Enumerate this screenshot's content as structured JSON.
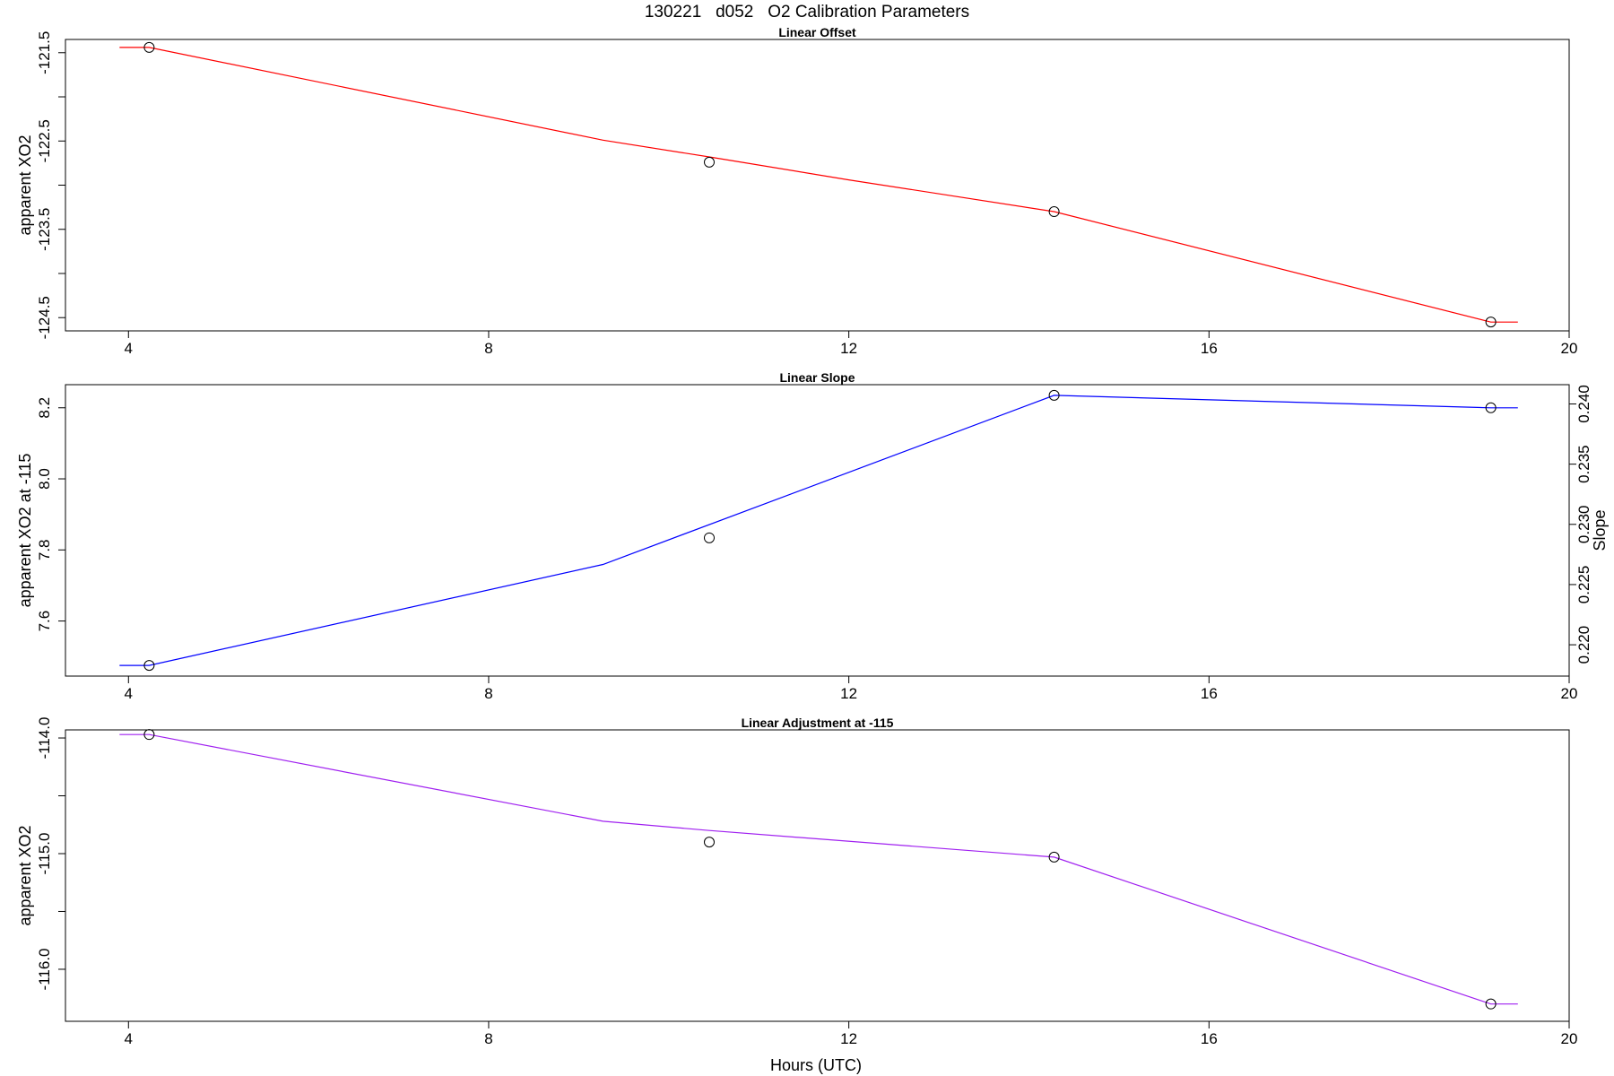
{
  "figure": {
    "title": "130221   d052   O2 Calibration Parameters",
    "xlabel": "Hours (UTC)"
  },
  "chart_data": [
    {
      "type": "line",
      "title": "Linear Offset",
      "ylabel": "apparent XO2",
      "line_color": "#ff0000",
      "xlim": [
        3.3,
        20
      ],
      "ylim": [
        -124.65,
        -121.35
      ],
      "xticks": [
        4,
        8,
        12,
        16,
        20
      ],
      "yticks": [
        -121.5,
        -122,
        -122.5,
        -123,
        -123.5,
        -124,
        -124.5
      ],
      "ytick_labels": [
        "-121.5",
        "",
        "-122.5",
        "",
        "-123.5",
        "",
        "-124.5"
      ],
      "points": {
        "x": [
          4.23,
          10.45,
          14.28,
          19.13
        ],
        "y": [
          -121.44,
          -122.74,
          -123.3,
          -124.55
        ]
      },
      "line": {
        "x": [
          3.9,
          4.23,
          9.27,
          10.45,
          12.0,
          14.28,
          19.13,
          19.43
        ],
        "y": [
          -121.44,
          -121.44,
          -122.49,
          -122.68,
          -122.94,
          -123.3,
          -124.55,
          -124.55
        ]
      }
    },
    {
      "type": "line",
      "title": "Linear Slope",
      "ylabel": "apparent XO2 at -115",
      "y2label": "Slope",
      "line_color": "#0000ff",
      "xlim": [
        3.3,
        20
      ],
      "ylim": [
        7.445,
        8.265
      ],
      "y2lim": [
        0.2174,
        0.2416
      ],
      "xticks": [
        4,
        8,
        12,
        16,
        20
      ],
      "yticks": [
        7.6,
        7.8,
        8.0,
        8.2
      ],
      "ytick_labels": [
        "7.6",
        "7.8",
        "8.0",
        "8.2"
      ],
      "y2ticks": [
        0.22,
        0.225,
        0.23,
        0.235,
        0.24
      ],
      "y2tick_labels": [
        "0.220",
        "0.225",
        "0.230",
        "0.235",
        "0.240"
      ],
      "points": {
        "x": [
          4.23,
          10.45,
          14.28,
          19.13
        ],
        "y": [
          7.475,
          7.834,
          8.235,
          8.2
        ]
      },
      "line": {
        "x": [
          3.9,
          4.23,
          9.27,
          14.28,
          19.13,
          19.43
        ],
        "y": [
          7.475,
          7.475,
          7.759,
          8.235,
          8.2,
          8.2
        ]
      }
    },
    {
      "type": "line",
      "title": "Linear Adjustment at -115",
      "ylabel": "apparent XO2",
      "line_color": "#a020f0",
      "xlim": [
        3.3,
        20
      ],
      "ylim": [
        -116.45,
        -113.93
      ],
      "xticks": [
        4,
        8,
        12,
        16,
        20
      ],
      "yticks": [
        -114,
        -114.5,
        -115,
        -115.5,
        -116
      ],
      "ytick_labels": [
        "-114.0",
        "",
        "-115.0",
        "",
        "-116.0"
      ],
      "points": {
        "x": [
          4.23,
          10.45,
          14.28,
          19.13
        ],
        "y": [
          -113.97,
          -114.9,
          -115.03,
          -116.3
        ]
      },
      "line": {
        "x": [
          3.9,
          4.23,
          9.27,
          10.45,
          14.28,
          19.13,
          19.43
        ],
        "y": [
          -113.97,
          -113.97,
          -114.72,
          -114.8,
          -115.03,
          -116.3,
          -116.3
        ]
      }
    }
  ]
}
